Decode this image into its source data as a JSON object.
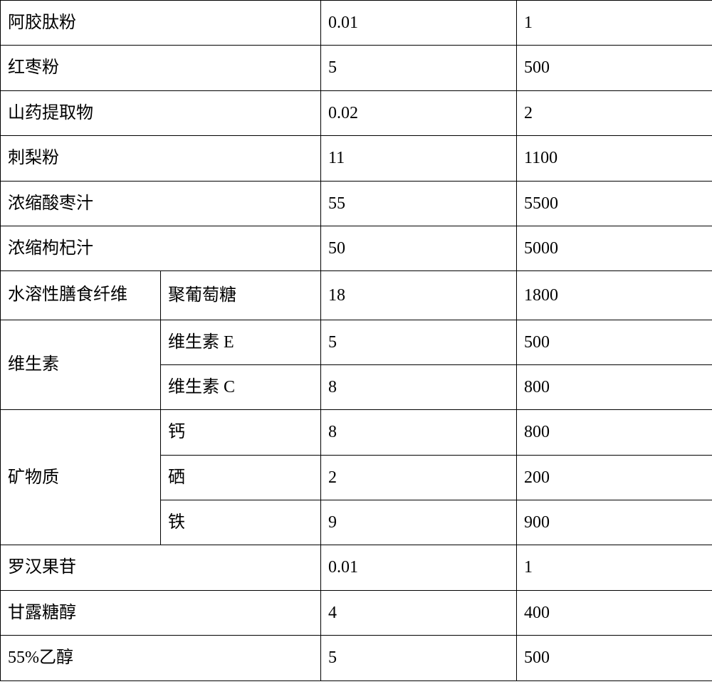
{
  "table": {
    "font_family": "SimSun",
    "font_size": 24,
    "border_color": "#000000",
    "text_color": "#000000",
    "background_color": "#ffffff",
    "cell_padding": "12px 10px",
    "columns": {
      "col1_width": 225,
      "col2_width": 225,
      "col3_width": 275,
      "col4_width": 275
    },
    "rows": [
      {
        "type": "simple",
        "name": "阿胶肽粉",
        "value1": "0.01",
        "value2": "1"
      },
      {
        "type": "simple",
        "name": "红枣粉",
        "value1": "5",
        "value2": "500"
      },
      {
        "type": "simple",
        "name": "山药提取物",
        "value1": "0.02",
        "value2": "2"
      },
      {
        "type": "simple",
        "name": "刺梨粉",
        "value1": "11",
        "value2": "1100"
      },
      {
        "type": "simple",
        "name": "浓缩酸枣汁",
        "value1": "55",
        "value2": "5500"
      },
      {
        "type": "simple",
        "name": "浓缩枸杞汁",
        "value1": "50",
        "value2": "5000"
      },
      {
        "type": "grouped",
        "group_name": "水溶性膳食纤维",
        "group_name_multiline": true,
        "items": [
          {
            "sub_name": "聚葡萄糖",
            "value1": "18",
            "value2": "1800"
          }
        ]
      },
      {
        "type": "grouped",
        "group_name": "维生素",
        "group_name_multiline": false,
        "items": [
          {
            "sub_name": "维生素 E",
            "value1": "5",
            "value2": "500"
          },
          {
            "sub_name": "维生素 C",
            "value1": "8",
            "value2": "800"
          }
        ]
      },
      {
        "type": "grouped",
        "group_name": "矿物质",
        "group_name_multiline": false,
        "items": [
          {
            "sub_name": "钙",
            "value1": "8",
            "value2": "800"
          },
          {
            "sub_name": "硒",
            "value1": "2",
            "value2": "200"
          },
          {
            "sub_name": "铁",
            "value1": "9",
            "value2": "900"
          }
        ]
      },
      {
        "type": "simple",
        "name": "罗汉果苷",
        "value1": "0.01",
        "value2": "1"
      },
      {
        "type": "simple",
        "name": "甘露糖醇",
        "value1": "4",
        "value2": "400"
      },
      {
        "type": "simple",
        "name": "55%乙醇",
        "value1": "5",
        "value2": "500"
      }
    ]
  }
}
